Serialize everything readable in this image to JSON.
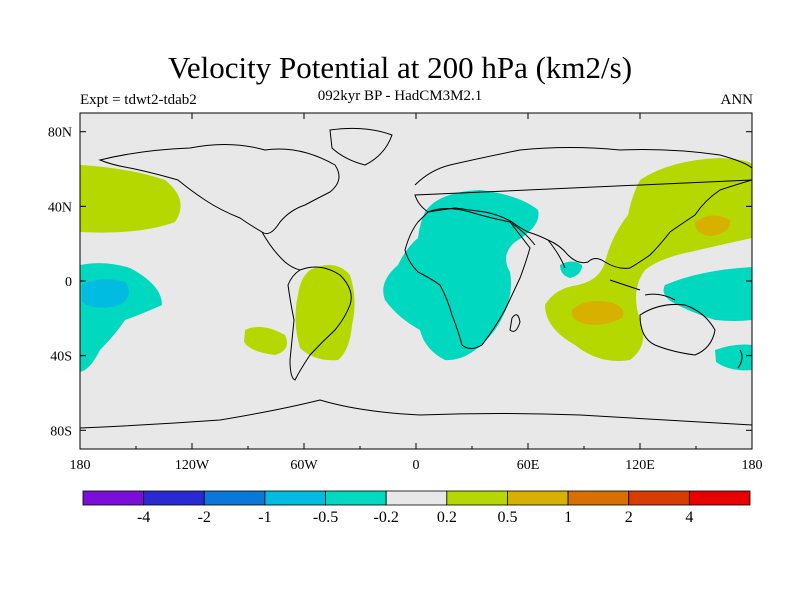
{
  "header": {
    "title": "Velocity Potential at 200 hPa (km2/s)",
    "subtitle": "092kyr BP - HadCM3M2.1",
    "left": "Expt = tdwt2-tdab2",
    "right": "ANN"
  },
  "axes": {
    "lon_ticks": [
      "180",
      "120W",
      "60W",
      "0",
      "60E",
      "120E",
      "180"
    ],
    "lat_ticks": [
      "80N",
      "40N",
      "0",
      "40S",
      "80S"
    ]
  },
  "colorbar": {
    "colors": [
      "#7a10d8",
      "#2a2ad2",
      "#0a78d8",
      "#00bce0",
      "#00d8c0",
      "#e8e8e8",
      "#b4d800",
      "#d8b000",
      "#d87000",
      "#d83c00",
      "#e80000"
    ],
    "labels": [
      "-4",
      "-2",
      "-1",
      "-0.5",
      "-0.2",
      "0.2",
      "0.5",
      "1",
      "2",
      "4"
    ]
  },
  "map": {
    "background_color": "#e8e8e8",
    "coast_color": "#000000"
  }
}
